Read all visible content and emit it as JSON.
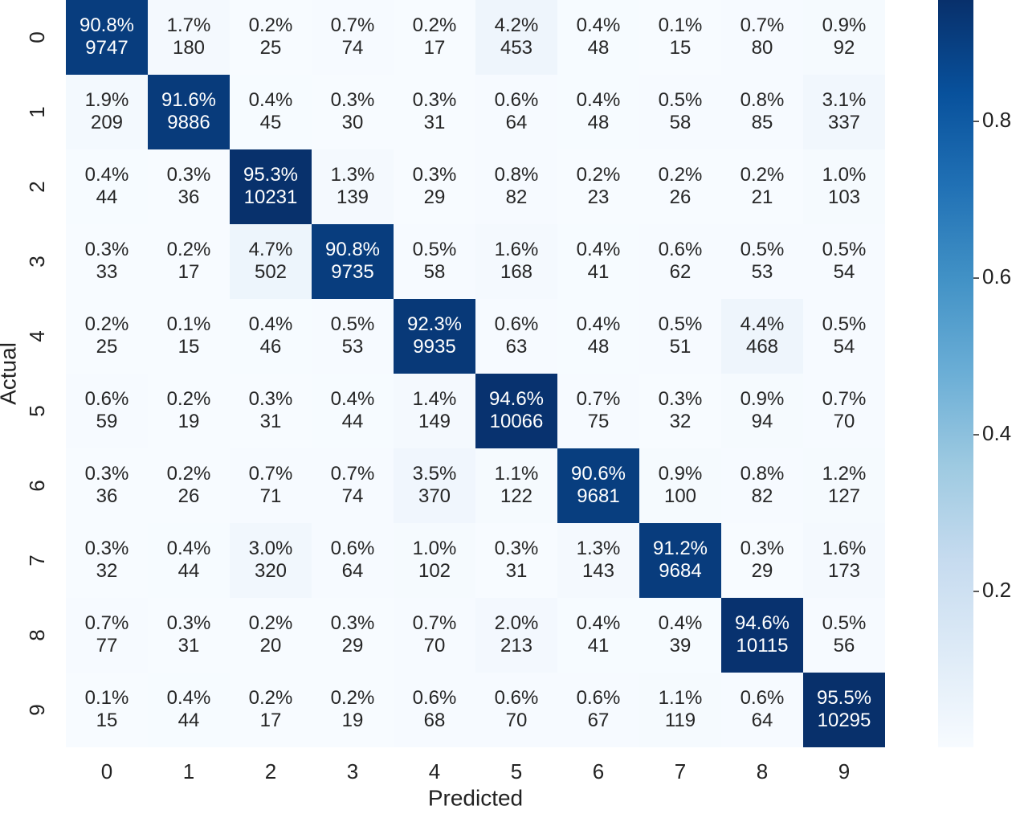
{
  "chart_data": {
    "type": "heatmap",
    "x_label": "Predicted",
    "y_label": "Actual",
    "x_categories": [
      "0",
      "1",
      "2",
      "3",
      "4",
      "5",
      "6",
      "7",
      "8",
      "9"
    ],
    "y_categories": [
      "0",
      "1",
      "2",
      "3",
      "4",
      "5",
      "6",
      "7",
      "8",
      "9"
    ],
    "colormap": "Blues",
    "zlim": [
      0.001,
      0.955
    ],
    "colorbar_ticks": [
      0.2,
      0.4,
      0.6,
      0.8
    ],
    "values": [
      [
        0.908,
        0.017,
        0.002,
        0.007,
        0.002,
        0.042,
        0.004,
        0.001,
        0.007,
        0.009
      ],
      [
        0.019,
        0.916,
        0.004,
        0.003,
        0.003,
        0.006,
        0.004,
        0.005,
        0.008,
        0.031
      ],
      [
        0.004,
        0.003,
        0.953,
        0.013,
        0.003,
        0.008,
        0.002,
        0.002,
        0.002,
        0.01
      ],
      [
        0.003,
        0.002,
        0.047,
        0.908,
        0.005,
        0.016,
        0.004,
        0.006,
        0.005,
        0.005
      ],
      [
        0.002,
        0.001,
        0.004,
        0.005,
        0.923,
        0.006,
        0.004,
        0.005,
        0.044,
        0.005
      ],
      [
        0.006,
        0.002,
        0.003,
        0.004,
        0.014,
        0.946,
        0.007,
        0.003,
        0.009,
        0.007
      ],
      [
        0.003,
        0.002,
        0.007,
        0.007,
        0.035,
        0.011,
        0.906,
        0.009,
        0.008,
        0.012
      ],
      [
        0.003,
        0.004,
        0.03,
        0.006,
        0.01,
        0.003,
        0.013,
        0.912,
        0.003,
        0.016
      ],
      [
        0.007,
        0.003,
        0.002,
        0.003,
        0.007,
        0.02,
        0.004,
        0.004,
        0.946,
        0.005
      ],
      [
        0.001,
        0.004,
        0.002,
        0.002,
        0.006,
        0.006,
        0.006,
        0.011,
        0.006,
        0.955
      ]
    ],
    "value_labels": [
      [
        "90.8%",
        "1.7%",
        "0.2%",
        "0.7%",
        "0.2%",
        "4.2%",
        "0.4%",
        "0.1%",
        "0.7%",
        "0.9%"
      ],
      [
        "1.9%",
        "91.6%",
        "0.4%",
        "0.3%",
        "0.3%",
        "0.6%",
        "0.4%",
        "0.5%",
        "0.8%",
        "3.1%"
      ],
      [
        "0.4%",
        "0.3%",
        "95.3%",
        "1.3%",
        "0.3%",
        "0.8%",
        "0.2%",
        "0.2%",
        "0.2%",
        "1.0%"
      ],
      [
        "0.3%",
        "0.2%",
        "4.7%",
        "90.8%",
        "0.5%",
        "1.6%",
        "0.4%",
        "0.6%",
        "0.5%",
        "0.5%"
      ],
      [
        "0.2%",
        "0.1%",
        "0.4%",
        "0.5%",
        "92.3%",
        "0.6%",
        "0.4%",
        "0.5%",
        "4.4%",
        "0.5%"
      ],
      [
        "0.6%",
        "0.2%",
        "0.3%",
        "0.4%",
        "1.4%",
        "94.6%",
        "0.7%",
        "0.3%",
        "0.9%",
        "0.7%"
      ],
      [
        "0.3%",
        "0.2%",
        "0.7%",
        "0.7%",
        "3.5%",
        "1.1%",
        "90.6%",
        "0.9%",
        "0.8%",
        "1.2%"
      ],
      [
        "0.3%",
        "0.4%",
        "3.0%",
        "0.6%",
        "1.0%",
        "0.3%",
        "1.3%",
        "91.2%",
        "0.3%",
        "1.6%"
      ],
      [
        "0.7%",
        "0.3%",
        "0.2%",
        "0.3%",
        "0.7%",
        "2.0%",
        "0.4%",
        "0.4%",
        "94.6%",
        "0.5%"
      ],
      [
        "0.1%",
        "0.4%",
        "0.2%",
        "0.2%",
        "0.6%",
        "0.6%",
        "0.6%",
        "1.1%",
        "0.6%",
        "95.5%"
      ]
    ],
    "counts": [
      [
        9747,
        180,
        25,
        74,
        17,
        453,
        48,
        15,
        80,
        92
      ],
      [
        209,
        9886,
        45,
        30,
        31,
        64,
        48,
        58,
        85,
        337
      ],
      [
        44,
        36,
        10231,
        139,
        29,
        82,
        23,
        26,
        21,
        103
      ],
      [
        33,
        17,
        502,
        9735,
        58,
        168,
        41,
        62,
        53,
        54
      ],
      [
        25,
        15,
        46,
        53,
        9935,
        63,
        48,
        51,
        468,
        54
      ],
      [
        59,
        19,
        31,
        44,
        149,
        10066,
        75,
        32,
        94,
        70
      ],
      [
        36,
        26,
        71,
        74,
        370,
        122,
        9681,
        100,
        82,
        127
      ],
      [
        32,
        44,
        320,
        64,
        102,
        31,
        143,
        9684,
        29,
        173
      ],
      [
        77,
        31,
        20,
        29,
        70,
        213,
        41,
        39,
        10115,
        56
      ],
      [
        15,
        44,
        17,
        19,
        68,
        70,
        67,
        119,
        64,
        10295
      ]
    ]
  }
}
